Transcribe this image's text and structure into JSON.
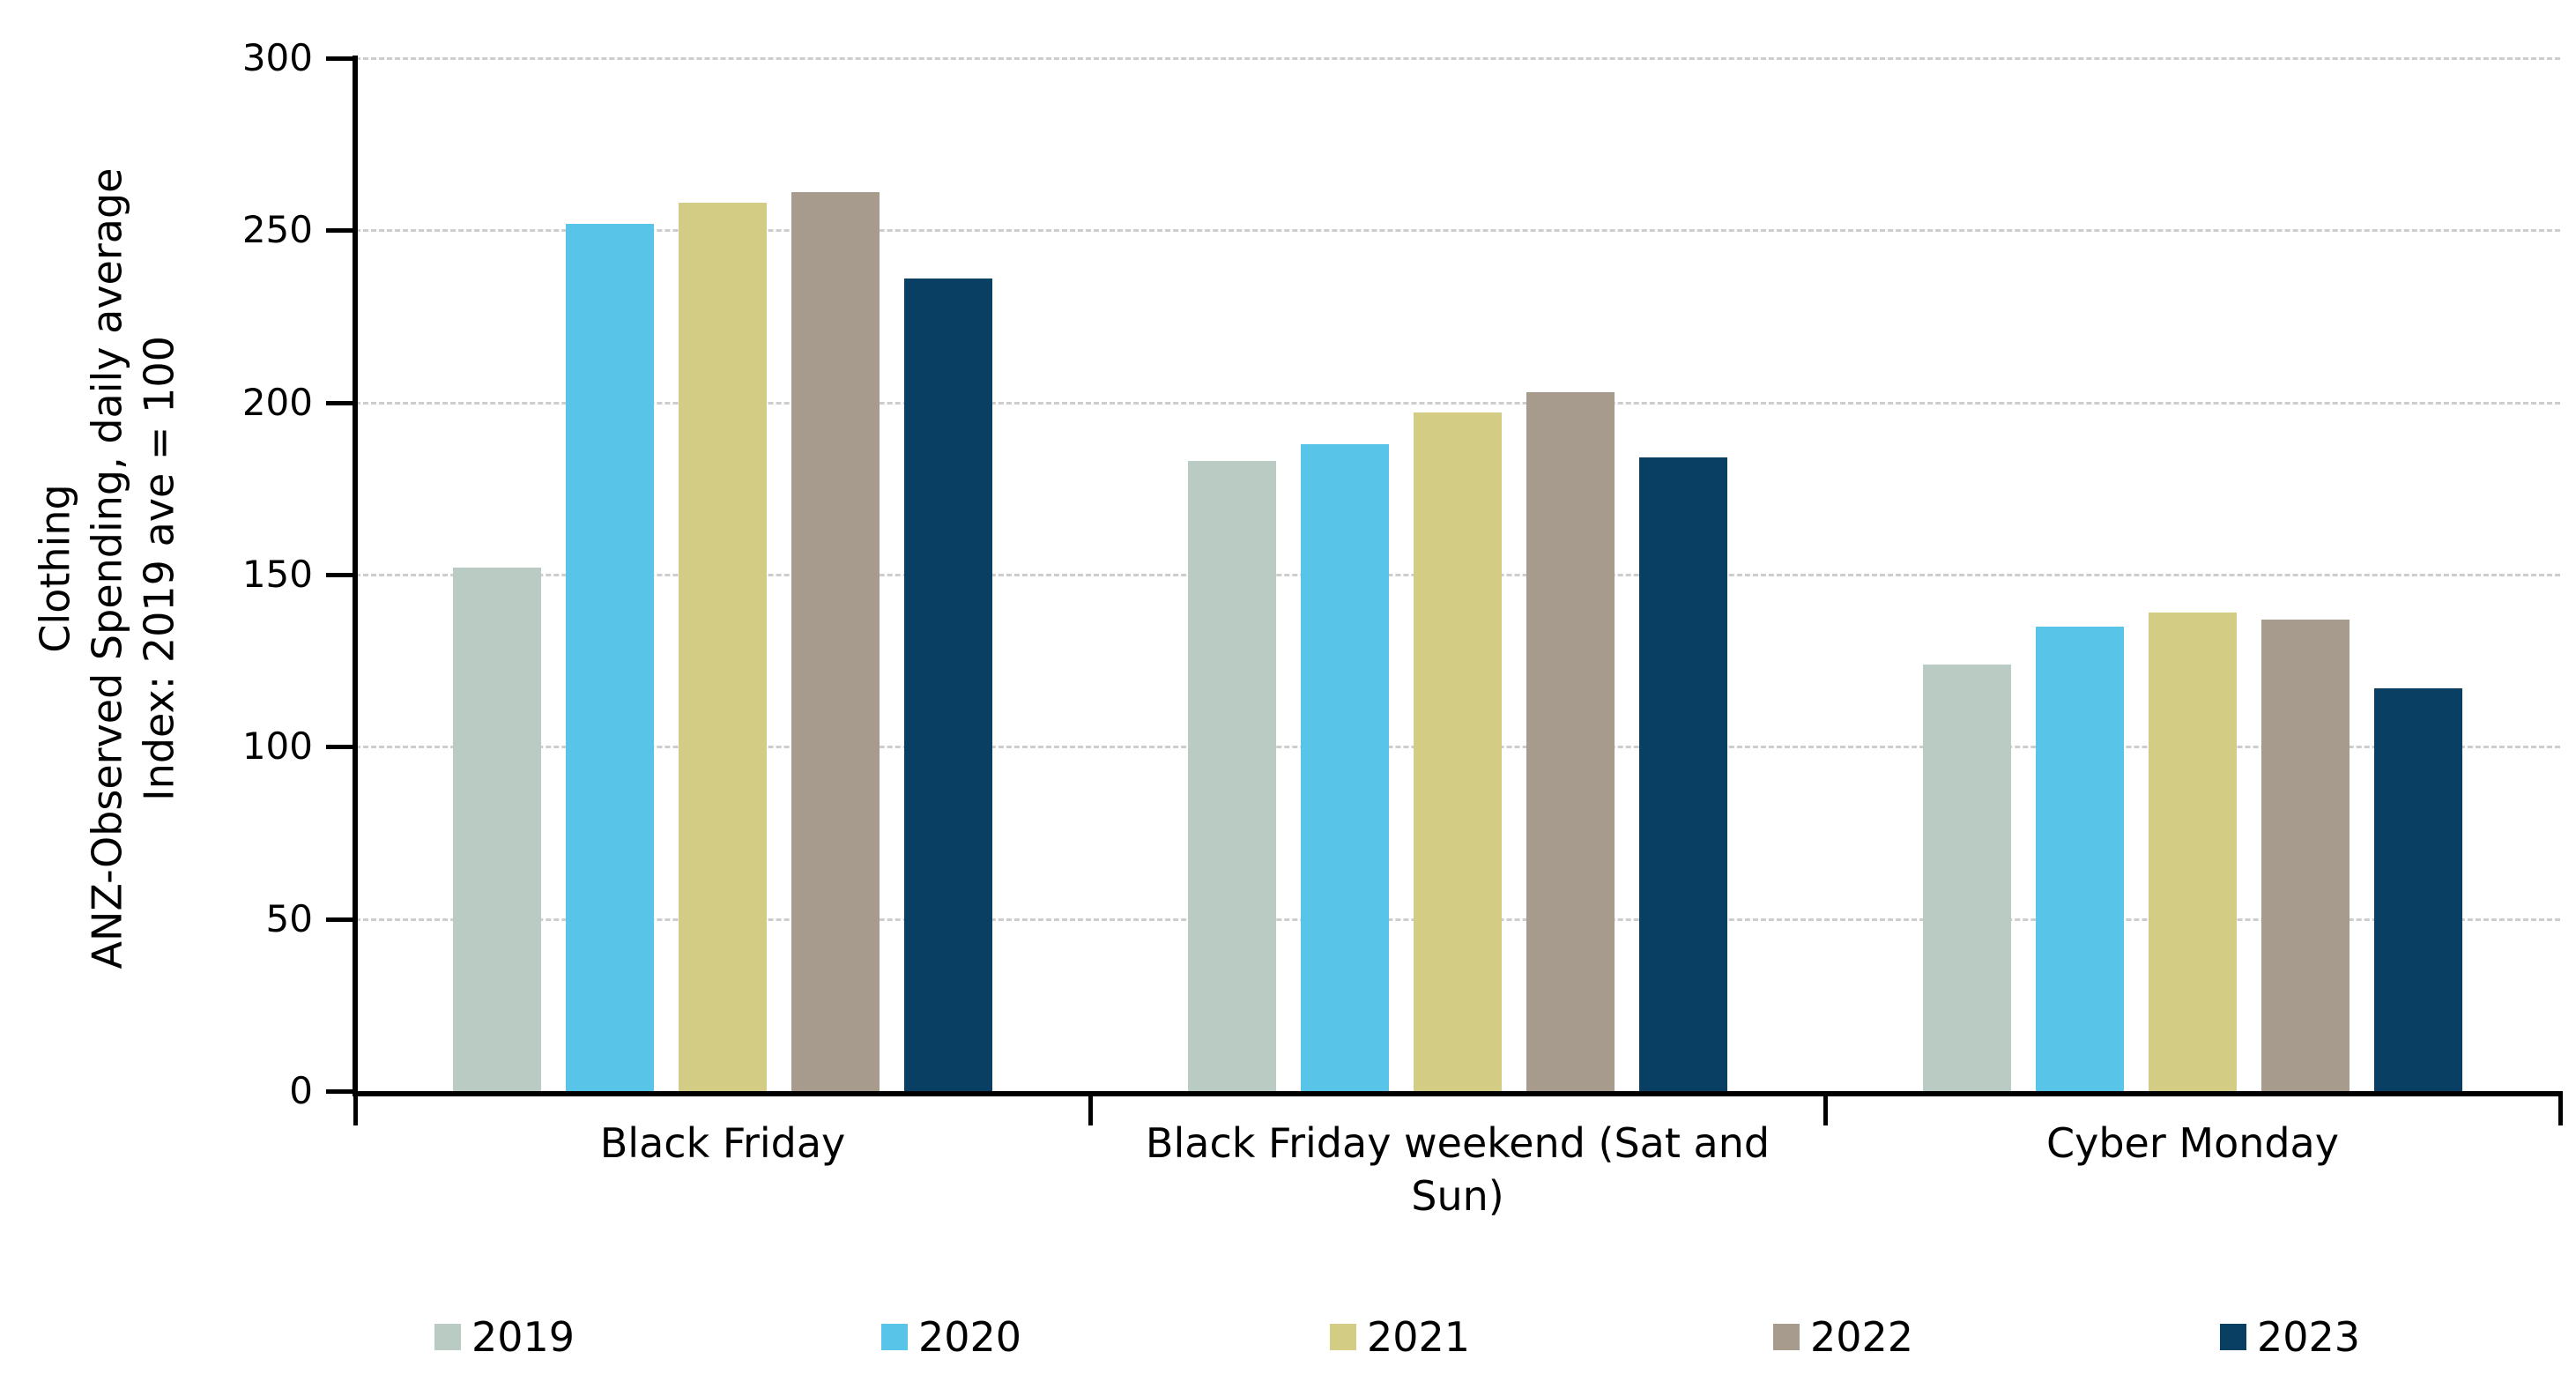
{
  "chart_data": {
    "type": "bar",
    "title": "",
    "ylabel_lines": [
      "Clothing",
      "ANZ-Observed Spending, daily average",
      "Index: 2019 ave = 100"
    ],
    "categories": [
      "Black Friday",
      "Black Friday weekend (Sat and Sun)",
      "Cyber Monday"
    ],
    "series": [
      {
        "name": "2019",
        "color": "#bacbc3",
        "values": [
          152,
          183,
          124
        ]
      },
      {
        "name": "2020",
        "color": "#58c5e8",
        "values": [
          252,
          188,
          135
        ]
      },
      {
        "name": "2021",
        "color": "#d2cc85",
        "values": [
          258,
          197,
          139
        ]
      },
      {
        "name": "2022",
        "color": "#a79b8e",
        "values": [
          261,
          203,
          137
        ]
      },
      {
        "name": "2023",
        "color": "#083f62",
        "values": [
          236,
          184,
          117
        ]
      }
    ],
    "ylim": [
      0,
      300
    ],
    "yticks": [
      0,
      50,
      100,
      150,
      200,
      250,
      300
    ],
    "grid": "horizontal-dashed",
    "legend_position": "bottom",
    "axis_color": "#000000",
    "gridline_color": "#cdcdcd"
  }
}
